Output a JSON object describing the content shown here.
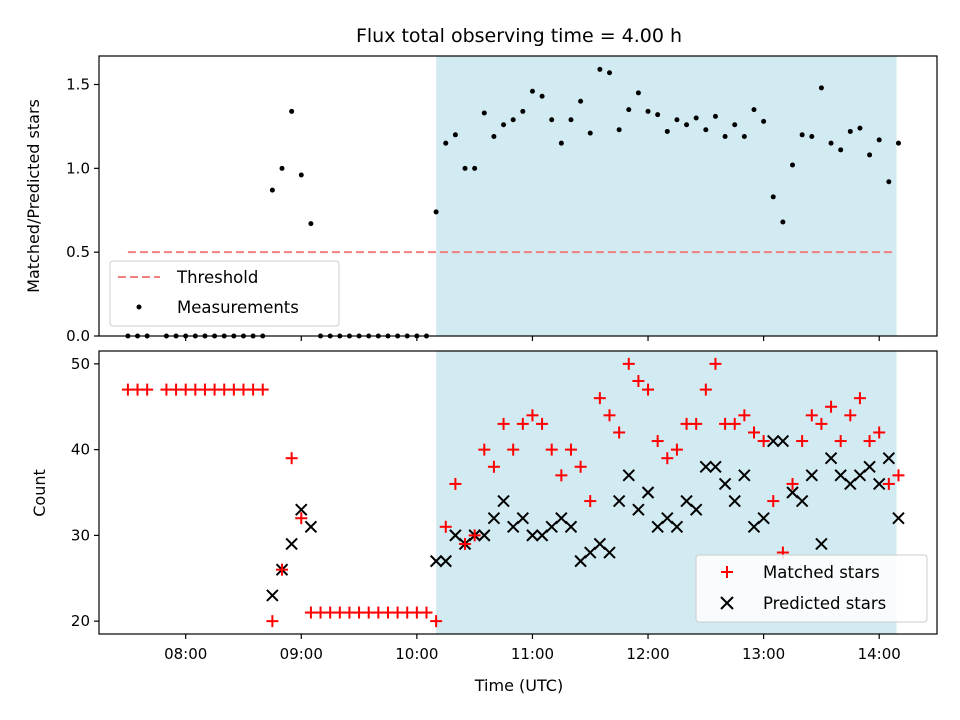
{
  "chart_data": [
    {
      "type": "scatter",
      "title": "Flux total observing time = 4.00 h",
      "ylabel": "Matched/Predicted stars",
      "xlabel": "",
      "xlim": [
        "07:15",
        "14:30"
      ],
      "ylim": [
        0,
        1.67
      ],
      "yticks": [
        "0.0",
        "0.5",
        "1.0",
        "1.5"
      ],
      "grid": false,
      "legend": {
        "position": "lower-left",
        "entries": [
          "Threshold",
          "Measurements"
        ]
      },
      "shaded_region": {
        "x_start": "10:10",
        "x_end": "14:09",
        "color": "#add8e6"
      },
      "threshold": {
        "name": "Threshold",
        "y": 0.5,
        "x_start": "07:30",
        "x_end": "14:08",
        "color": "#f08080"
      },
      "series": [
        {
          "name": "Measurements",
          "color": "#000000",
          "points": [
            [
              "07:30",
              0.0
            ],
            [
              "07:35",
              0.0
            ],
            [
              "07:40",
              0.0
            ],
            [
              "07:50",
              0.0
            ],
            [
              "07:55",
              0.0
            ],
            [
              "08:00",
              0.0
            ],
            [
              "08:05",
              0.0
            ],
            [
              "08:10",
              0.0
            ],
            [
              "08:15",
              0.0
            ],
            [
              "08:20",
              0.0
            ],
            [
              "08:25",
              0.0
            ],
            [
              "08:30",
              0.0
            ],
            [
              "08:35",
              0.0
            ],
            [
              "08:40",
              0.0
            ],
            [
              "08:45",
              0.87
            ],
            [
              "08:50",
              1.0
            ],
            [
              "08:55",
              1.34
            ],
            [
              "09:00",
              0.96
            ],
            [
              "09:05",
              0.67
            ],
            [
              "09:10",
              0.0
            ],
            [
              "09:15",
              0.0
            ],
            [
              "09:20",
              0.0
            ],
            [
              "09:25",
              0.0
            ],
            [
              "09:30",
              0.0
            ],
            [
              "09:35",
              0.0
            ],
            [
              "09:40",
              0.0
            ],
            [
              "09:45",
              0.0
            ],
            [
              "09:50",
              0.0
            ],
            [
              "09:55",
              0.0
            ],
            [
              "10:00",
              0.0
            ],
            [
              "10:05",
              0.0
            ],
            [
              "10:10",
              0.74
            ],
            [
              "10:15",
              1.15
            ],
            [
              "10:20",
              1.2
            ],
            [
              "10:25",
              1.0
            ],
            [
              "10:30",
              1.0
            ],
            [
              "10:35",
              1.33
            ],
            [
              "10:40",
              1.19
            ],
            [
              "10:45",
              1.26
            ],
            [
              "10:50",
              1.29
            ],
            [
              "10:55",
              1.34
            ],
            [
              "11:00",
              1.46
            ],
            [
              "11:05",
              1.43
            ],
            [
              "11:10",
              1.29
            ],
            [
              "11:15",
              1.15
            ],
            [
              "11:20",
              1.29
            ],
            [
              "11:25",
              1.4
            ],
            [
              "11:30",
              1.21
            ],
            [
              "11:35",
              1.59
            ],
            [
              "11:40",
              1.57
            ],
            [
              "11:45",
              1.23
            ],
            [
              "11:50",
              1.35
            ],
            [
              "11:55",
              1.45
            ],
            [
              "12:00",
              1.34
            ],
            [
              "12:05",
              1.32
            ],
            [
              "12:10",
              1.22
            ],
            [
              "12:15",
              1.29
            ],
            [
              "12:20",
              1.26
            ],
            [
              "12:25",
              1.3
            ],
            [
              "12:30",
              1.23
            ],
            [
              "12:35",
              1.31
            ],
            [
              "12:40",
              1.19
            ],
            [
              "12:45",
              1.26
            ],
            [
              "12:50",
              1.19
            ],
            [
              "12:55",
              1.35
            ],
            [
              "13:00",
              1.28
            ],
            [
              "13:05",
              0.83
            ],
            [
              "13:10",
              0.68
            ],
            [
              "13:15",
              1.02
            ],
            [
              "13:20",
              1.2
            ],
            [
              "13:25",
              1.19
            ],
            [
              "13:30",
              1.48
            ],
            [
              "13:35",
              1.15
            ],
            [
              "13:40",
              1.11
            ],
            [
              "13:45",
              1.22
            ],
            [
              "13:50",
              1.24
            ],
            [
              "13:55",
              1.08
            ],
            [
              "14:00",
              1.17
            ],
            [
              "14:05",
              0.92
            ],
            [
              "14:10",
              1.15
            ]
          ]
        }
      ],
      "xticks": [
        "08:00",
        "09:00",
        "10:00",
        "11:00",
        "12:00",
        "13:00",
        "14:00"
      ]
    },
    {
      "type": "scatter",
      "title": "",
      "ylabel": "Count",
      "xlabel": "Time (UTC)",
      "xlim": [
        "07:15",
        "14:30"
      ],
      "ylim": [
        18.5,
        51.5
      ],
      "yticks": [
        "20",
        "30",
        "40",
        "50"
      ],
      "xticks": [
        "08:00",
        "09:00",
        "10:00",
        "11:00",
        "12:00",
        "13:00",
        "14:00"
      ],
      "grid": false,
      "legend": {
        "position": "lower-right",
        "entries": [
          "Matched stars",
          "Predicted stars"
        ]
      },
      "shaded_region": {
        "x_start": "10:10",
        "x_end": "14:09",
        "color": "#add8e6"
      },
      "series": [
        {
          "name": "Matched stars",
          "marker": "plus",
          "color": "#ff0000",
          "points": [
            [
              "07:30",
              47
            ],
            [
              "07:35",
              47
            ],
            [
              "07:40",
              47
            ],
            [
              "07:50",
              47
            ],
            [
              "07:55",
              47
            ],
            [
              "08:00",
              47
            ],
            [
              "08:05",
              47
            ],
            [
              "08:10",
              47
            ],
            [
              "08:15",
              47
            ],
            [
              "08:20",
              47
            ],
            [
              "08:25",
              47
            ],
            [
              "08:30",
              47
            ],
            [
              "08:35",
              47
            ],
            [
              "08:40",
              47
            ],
            [
              "08:45",
              20
            ],
            [
              "08:50",
              26
            ],
            [
              "08:55",
              39
            ],
            [
              "09:00",
              32
            ],
            [
              "09:05",
              21
            ],
            [
              "09:10",
              21
            ],
            [
              "09:15",
              21
            ],
            [
              "09:20",
              21
            ],
            [
              "09:25",
              21
            ],
            [
              "09:30",
              21
            ],
            [
              "09:35",
              21
            ],
            [
              "09:40",
              21
            ],
            [
              "09:45",
              21
            ],
            [
              "09:50",
              21
            ],
            [
              "09:55",
              21
            ],
            [
              "10:00",
              21
            ],
            [
              "10:05",
              21
            ],
            [
              "10:10",
              20
            ],
            [
              "10:15",
              31
            ],
            [
              "10:20",
              36
            ],
            [
              "10:25",
              29
            ],
            [
              "10:30",
              30
            ],
            [
              "10:35",
              40
            ],
            [
              "10:40",
              38
            ],
            [
              "10:45",
              43
            ],
            [
              "10:50",
              40
            ],
            [
              "10:55",
              43
            ],
            [
              "11:00",
              44
            ],
            [
              "11:05",
              43
            ],
            [
              "11:10",
              40
            ],
            [
              "11:15",
              37
            ],
            [
              "11:20",
              40
            ],
            [
              "11:25",
              38
            ],
            [
              "11:30",
              34
            ],
            [
              "11:35",
              46
            ],
            [
              "11:40",
              44
            ],
            [
              "11:45",
              42
            ],
            [
              "11:50",
              50
            ],
            [
              "11:55",
              48
            ],
            [
              "12:00",
              47
            ],
            [
              "12:05",
              41
            ],
            [
              "12:10",
              39
            ],
            [
              "12:15",
              40
            ],
            [
              "12:20",
              43
            ],
            [
              "12:25",
              43
            ],
            [
              "12:30",
              47
            ],
            [
              "12:35",
              50
            ],
            [
              "12:40",
              43
            ],
            [
              "12:45",
              43
            ],
            [
              "12:50",
              44
            ],
            [
              "12:55",
              42
            ],
            [
              "13:00",
              41
            ],
            [
              "13:05",
              34
            ],
            [
              "13:10",
              28
            ],
            [
              "13:15",
              36
            ],
            [
              "13:20",
              41
            ],
            [
              "13:25",
              44
            ],
            [
              "13:30",
              43
            ],
            [
              "13:35",
              45
            ],
            [
              "13:40",
              41
            ],
            [
              "13:45",
              44
            ],
            [
              "13:50",
              46
            ],
            [
              "13:55",
              41
            ],
            [
              "14:00",
              42
            ],
            [
              "14:05",
              36
            ],
            [
              "14:10",
              37
            ]
          ]
        },
        {
          "name": "Predicted stars",
          "marker": "x",
          "color": "#000000",
          "points": [
            [
              "08:45",
              23
            ],
            [
              "08:50",
              26
            ],
            [
              "08:55",
              29
            ],
            [
              "09:00",
              33
            ],
            [
              "09:05",
              31
            ],
            [
              "10:10",
              27
            ],
            [
              "10:15",
              27
            ],
            [
              "10:20",
              30
            ],
            [
              "10:25",
              29
            ],
            [
              "10:30",
              30
            ],
            [
              "10:35",
              30
            ],
            [
              "10:40",
              32
            ],
            [
              "10:45",
              34
            ],
            [
              "10:50",
              31
            ],
            [
              "10:55",
              32
            ],
            [
              "11:00",
              30
            ],
            [
              "11:05",
              30
            ],
            [
              "11:10",
              31
            ],
            [
              "11:15",
              32
            ],
            [
              "11:20",
              31
            ],
            [
              "11:25",
              27
            ],
            [
              "11:30",
              28
            ],
            [
              "11:35",
              29
            ],
            [
              "11:40",
              28
            ],
            [
              "11:45",
              34
            ],
            [
              "11:50",
              37
            ],
            [
              "11:55",
              33
            ],
            [
              "12:00",
              35
            ],
            [
              "12:05",
              31
            ],
            [
              "12:10",
              32
            ],
            [
              "12:15",
              31
            ],
            [
              "12:20",
              34
            ],
            [
              "12:25",
              33
            ],
            [
              "12:30",
              38
            ],
            [
              "12:35",
              38
            ],
            [
              "12:40",
              36
            ],
            [
              "12:45",
              34
            ],
            [
              "12:50",
              37
            ],
            [
              "12:55",
              31
            ],
            [
              "13:00",
              32
            ],
            [
              "13:05",
              41
            ],
            [
              "13:10",
              41
            ],
            [
              "13:15",
              35
            ],
            [
              "13:20",
              34
            ],
            [
              "13:25",
              37
            ],
            [
              "13:30",
              29
            ],
            [
              "13:35",
              39
            ],
            [
              "13:40",
              37
            ],
            [
              "13:45",
              36
            ],
            [
              "13:50",
              37
            ],
            [
              "13:55",
              38
            ],
            [
              "14:00",
              36
            ],
            [
              "14:05",
              39
            ],
            [
              "14:10",
              32
            ]
          ]
        }
      ]
    }
  ]
}
